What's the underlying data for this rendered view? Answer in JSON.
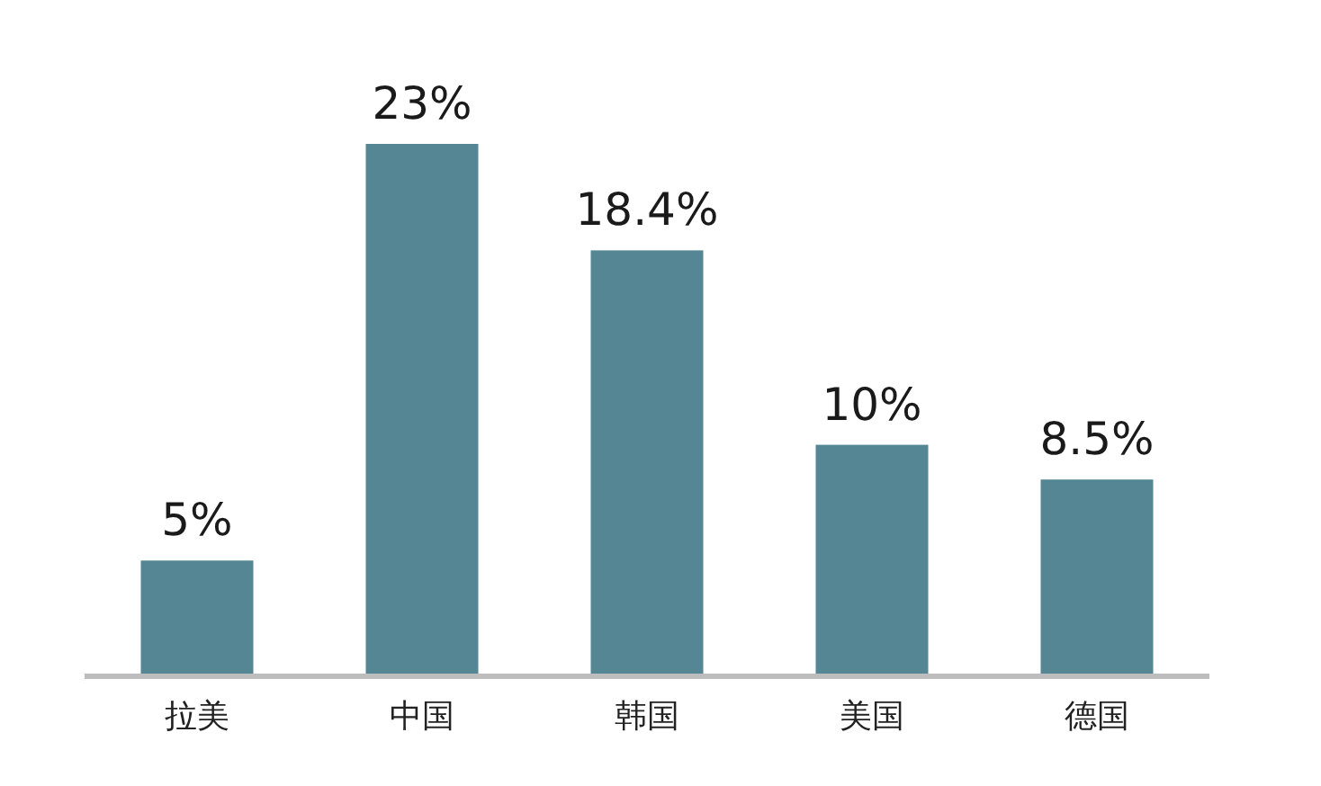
{
  "chart_data": {
    "type": "bar",
    "categories": [
      "拉美",
      "中国",
      "韩国",
      "美国",
      "德国"
    ],
    "values": [
      5,
      23,
      18.4,
      10,
      8.5
    ],
    "value_labels": [
      "5%",
      "23%",
      "18.4%",
      "10%",
      "8.5%"
    ],
    "color": "#548694"
  }
}
